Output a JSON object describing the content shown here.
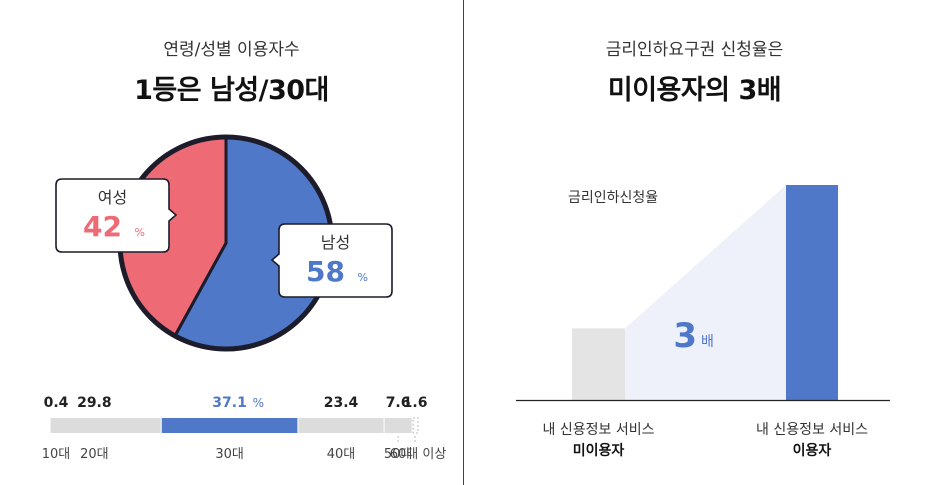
{
  "left": {
    "subtitle": "연령/성별 이용자수",
    "headline": "1등은 남성/30대"
  },
  "right": {
    "subtitle": "금리인하요구권 신청율은",
    "headline": "미이용자의 3배"
  },
  "chart_data": [
    {
      "type": "pie",
      "slices": [
        {
          "label": "남성",
          "value": 58,
          "value_label": "58",
          "unit": "%",
          "color": "#5078c8"
        },
        {
          "label": "여성",
          "value": 42,
          "value_label": "42",
          "unit": "%",
          "color": "#ee6a74"
        }
      ]
    },
    {
      "type": "bar",
      "orientation": "horizontal-stacked",
      "categories": [
        "10대",
        "20대",
        "30대",
        "40대",
        "50대",
        "60대 이상"
      ],
      "values": [
        0.4,
        29.8,
        37.1,
        23.4,
        7.6,
        1.6
      ],
      "value_labels": [
        "0.4",
        "29.8",
        "37.1",
        "23.4",
        "7.6",
        "1.6"
      ],
      "highlight": "30대",
      "highlight_unit": "%",
      "colors": {
        "base": "#dcdcdc",
        "highlight": "#5078c8"
      }
    },
    {
      "type": "bar",
      "categories": [
        "내 신용정보 서비스 미이용자",
        "내 신용정보 서비스 이용자"
      ],
      "category_lines": [
        [
          "내 신용정보 서비스",
          "미이용자"
        ],
        [
          "내 신용정보 서비스",
          "이용자"
        ]
      ],
      "values": [
        1,
        3
      ],
      "ylabel": "금리인하신청율",
      "annotation": {
        "value": "3",
        "unit": "배"
      },
      "colors": [
        "#e4e4e4",
        "#5078c8"
      ],
      "band_color": "#eef1fa"
    }
  ]
}
